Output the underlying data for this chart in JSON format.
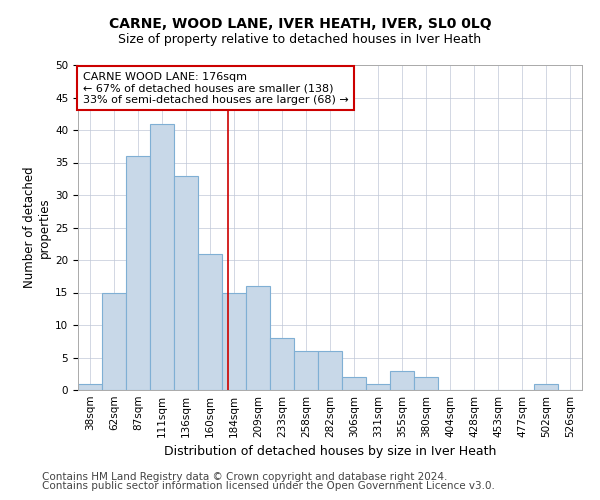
{
  "title": "CARNE, WOOD LANE, IVER HEATH, IVER, SL0 0LQ",
  "subtitle": "Size of property relative to detached houses in Iver Heath",
  "xlabel": "Distribution of detached houses by size in Iver Heath",
  "ylabel": "Number of detached\nproperties",
  "bins": [
    "38sqm",
    "62sqm",
    "87sqm",
    "111sqm",
    "136sqm",
    "160sqm",
    "184sqm",
    "209sqm",
    "233sqm",
    "258sqm",
    "282sqm",
    "306sqm",
    "331sqm",
    "355sqm",
    "380sqm",
    "404sqm",
    "428sqm",
    "453sqm",
    "477sqm",
    "502sqm",
    "526sqm"
  ],
  "values": [
    1,
    15,
    36,
    41,
    33,
    21,
    15,
    16,
    8,
    6,
    6,
    2,
    1,
    3,
    2,
    0,
    0,
    0,
    0,
    1,
    0
  ],
  "bar_color": "#c8d8e8",
  "bar_edge_color": "#7fafd4",
  "red_line_x": 5.77,
  "red_line_color": "#cc0000",
  "annotation_text": "CARNE WOOD LANE: 176sqm\n← 67% of detached houses are smaller (138)\n33% of semi-detached houses are larger (68) →",
  "annotation_box_color": "#ffffff",
  "annotation_box_edge_color": "#cc0000",
  "footer1": "Contains HM Land Registry data © Crown copyright and database right 2024.",
  "footer2": "Contains public sector information licensed under the Open Government Licence v3.0.",
  "ylim": [
    0,
    50
  ],
  "title_fontsize": 10,
  "subtitle_fontsize": 9,
  "xlabel_fontsize": 9,
  "ylabel_fontsize": 8.5,
  "tick_fontsize": 7.5,
  "annotation_fontsize": 8,
  "footer_fontsize": 7.5
}
